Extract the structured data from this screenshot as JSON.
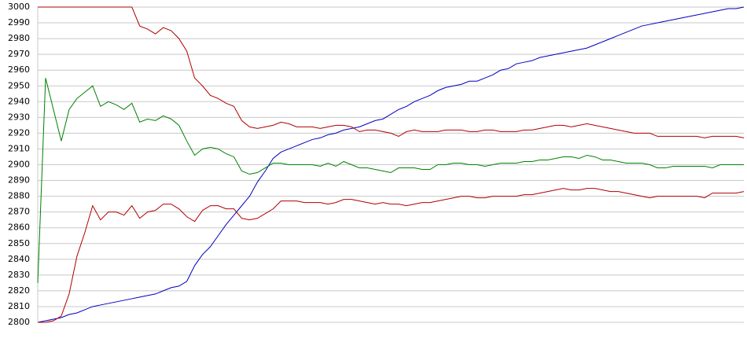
{
  "chart_data": {
    "type": "line",
    "categories": [
      null,
      null,
      null,
      null,
      null,
      null,
      null,
      null,
      null,
      null,
      null,
      null,
      null,
      null,
      null,
      null,
      null,
      null,
      null,
      null,
      null,
      null,
      null,
      null,
      null,
      null,
      null,
      null,
      null,
      null,
      null,
      null,
      null,
      null,
      null,
      null,
      null,
      null,
      null,
      null,
      null,
      null,
      null,
      null,
      null,
      null,
      null,
      null,
      null,
      null,
      null,
      null,
      null,
      null,
      null,
      null,
      null,
      null,
      null,
      null,
      null,
      null,
      null,
      null,
      null,
      null,
      null,
      null,
      null,
      null,
      null,
      null,
      null,
      null,
      null,
      null,
      null,
      null,
      null,
      null,
      null,
      null,
      null,
      null,
      null,
      null,
      null,
      null,
      null,
      null,
      null
    ],
    "series": [
      {
        "color": "#0000c0",
        "values": [
          2800,
          2801,
          2802,
          2803,
          2805,
          2806,
          2808,
          2810,
          2811,
          2812,
          2813,
          2814,
          2815,
          2816,
          2817,
          2818,
          2820,
          2822,
          2823,
          2826,
          2836,
          2843,
          2848,
          2855,
          2862,
          2868,
          2874,
          2880,
          2889,
          2896,
          2904,
          2908,
          2910,
          2912,
          2914,
          2916,
          2917,
          2919,
          2920,
          2922,
          2923,
          2924,
          2926,
          2928,
          2929,
          2932,
          2935,
          2937,
          2940,
          2942,
          2944,
          2947,
          2949,
          2950,
          2951,
          2953,
          2953,
          2955,
          2957,
          2960,
          2961,
          2964,
          2965,
          2966,
          2968,
          2969,
          2970,
          2971,
          2972,
          2973,
          2974,
          2976,
          2978,
          2980,
          2982,
          2984,
          2986,
          2988,
          2989,
          2990,
          2991,
          2992,
          2993,
          2994,
          2995,
          2996,
          2997,
          2998,
          2999,
          2999,
          3000
        ]
      },
      {
        "color": "#008000",
        "values": [
          2825,
          2955,
          2935,
          2915,
          2935,
          2942,
          2946,
          2950,
          2937,
          2940,
          2938,
          2935,
          2939,
          2927,
          2929,
          2928,
          2931,
          2929,
          2925,
          2915,
          2906,
          2910,
          2911,
          2910,
          2907,
          2905,
          2896,
          2894,
          2895,
          2898,
          2901,
          2901,
          2900,
          2900,
          2900,
          2900,
          2899,
          2901,
          2899,
          2902,
          2900,
          2898,
          2898,
          2897,
          2896,
          2895,
          2898,
          2898,
          2898,
          2897,
          2897,
          2900,
          2900,
          2901,
          2901,
          2900,
          2900,
          2899,
          2900,
          2901,
          2901,
          2901,
          2902,
          2902,
          2903,
          2903,
          2904,
          2905,
          2905,
          2904,
          2906,
          2905,
          2903,
          2903,
          2902,
          2901,
          2901,
          2901,
          2900,
          2898,
          2898,
          2899,
          2899,
          2899,
          2899,
          2899,
          2898,
          2900,
          2900,
          2900,
          2900
        ]
      },
      {
        "color": "#b00000",
        "values": [
          3000,
          3000,
          3000,
          3000,
          3000,
          3000,
          3000,
          3000,
          3000,
          3000,
          3000,
          3000,
          3000,
          2988,
          2986,
          2983,
          2987,
          2985,
          2980,
          2972,
          2955,
          2950,
          2944,
          2942,
          2939,
          2937,
          2928,
          2924,
          2923,
          2924,
          2925,
          2927,
          2926,
          2924,
          2924,
          2924,
          2923,
          2924,
          2925,
          2925,
          2924,
          2921,
          2922,
          2922,
          2921,
          2920,
          2918,
          2921,
          2922,
          2921,
          2921,
          2921,
          2922,
          2922,
          2922,
          2921,
          2921,
          2922,
          2922,
          2921,
          2921,
          2921,
          2922,
          2922,
          2923,
          2924,
          2925,
          2925,
          2924,
          2925,
          2926,
          2925,
          2924,
          2923,
          2922,
          2921,
          2920,
          2920,
          2920,
          2918,
          2918,
          2918,
          2918,
          2918,
          2918,
          2917,
          2918,
          2918,
          2918,
          2918,
          2917
        ]
      },
      {
        "color": "#b00000",
        "values": [
          2800,
          2800,
          2801,
          2804,
          2818,
          2842,
          2857,
          2874,
          2865,
          2870,
          2870,
          2868,
          2874,
          2866,
          2870,
          2871,
          2875,
          2875,
          2872,
          2867,
          2864,
          2871,
          2874,
          2874,
          2872,
          2872,
          2866,
          2865,
          2866,
          2869,
          2872,
          2877,
          2877,
          2877,
          2876,
          2876,
          2876,
          2875,
          2876,
          2878,
          2878,
          2877,
          2876,
          2875,
          2876,
          2875,
          2875,
          2874,
          2875,
          2876,
          2876,
          2877,
          2878,
          2879,
          2880,
          2880,
          2879,
          2879,
          2880,
          2880,
          2880,
          2880,
          2881,
          2881,
          2882,
          2883,
          2884,
          2885,
          2884,
          2884,
          2885,
          2885,
          2884,
          2883,
          2883,
          2882,
          2881,
          2880,
          2879,
          2880,
          2880,
          2880,
          2880,
          2880,
          2880,
          2879,
          2882,
          2882,
          2882,
          2882,
          2883
        ]
      }
    ],
    "ylim": [
      2800,
      3000
    ],
    "yticks": [
      2800,
      2810,
      2820,
      2830,
      2840,
      2850,
      2860,
      2870,
      2880,
      2890,
      2900,
      2910,
      2920,
      2930,
      2940,
      2950,
      2960,
      2970,
      2980,
      2990,
      3000
    ],
    "grid": true
  }
}
